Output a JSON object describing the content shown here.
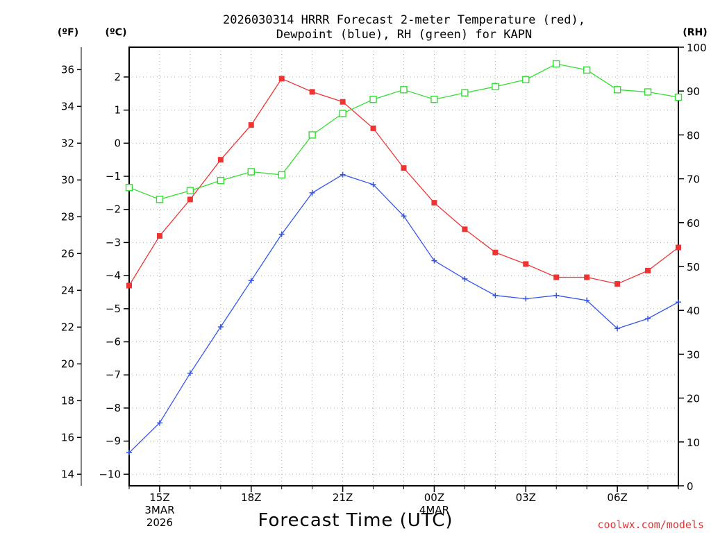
{
  "chart_data": {
    "type": "line",
    "title_line1": "2026030314 HRRR Forecast 2-meter Temperature (red),",
    "title_line2": "Dewpoint (blue), RH (green) for KAPN",
    "xlabel": "Forecast Time (UTC)",
    "credit": "coolwx.com/models",
    "units": {
      "fahrenheit": "(ºF)",
      "celsius": "(ºC)",
      "rh": "(RH)"
    },
    "x_hours": [
      14,
      15,
      16,
      17,
      18,
      19,
      20,
      21,
      22,
      23,
      24,
      25,
      26,
      27,
      28,
      29,
      30,
      31,
      32
    ],
    "x_range": [
      14,
      32
    ],
    "celsius_range": [
      -10.35,
      2.9
    ],
    "rh_range": [
      0,
      100
    ],
    "fahrenheit_ticks": [
      {
        "f": 14,
        "label": "14"
      },
      {
        "f": 16,
        "label": "16"
      },
      {
        "f": 18,
        "label": "18"
      },
      {
        "f": 20,
        "label": "20"
      },
      {
        "f": 22,
        "label": "22"
      },
      {
        "f": 24,
        "label": "24"
      },
      {
        "f": 26,
        "label": "26"
      },
      {
        "f": 28,
        "label": "28"
      },
      {
        "f": 30,
        "label": "30"
      },
      {
        "f": 32,
        "label": "32"
      },
      {
        "f": 34,
        "label": "34"
      },
      {
        "f": 36,
        "label": "36"
      }
    ],
    "celsius_ticks": [
      {
        "c": -10,
        "label": "−10"
      },
      {
        "c": -9,
        "label": "−9"
      },
      {
        "c": -8,
        "label": "−8"
      },
      {
        "c": -7,
        "label": "−7"
      },
      {
        "c": -6,
        "label": "−6"
      },
      {
        "c": -5,
        "label": "−5"
      },
      {
        "c": -4,
        "label": "−4"
      },
      {
        "c": -3,
        "label": "−3"
      },
      {
        "c": -2,
        "label": "−2"
      },
      {
        "c": -1,
        "label": "−1"
      },
      {
        "c": 0,
        "label": "0"
      },
      {
        "c": 1,
        "label": "1"
      },
      {
        "c": 2,
        "label": "2"
      }
    ],
    "rh_ticks": [
      {
        "rh": 0,
        "label": "0"
      },
      {
        "rh": 10,
        "label": "10"
      },
      {
        "rh": 20,
        "label": "20"
      },
      {
        "rh": 30,
        "label": "30"
      },
      {
        "rh": 40,
        "label": "40"
      },
      {
        "rh": 50,
        "label": "50"
      },
      {
        "rh": 60,
        "label": "60"
      },
      {
        "rh": 70,
        "label": "70"
      },
      {
        "rh": 80,
        "label": "80"
      },
      {
        "rh": 90,
        "label": "90"
      },
      {
        "rh": 100,
        "label": "100"
      }
    ],
    "x_ticks": [
      {
        "h": 15,
        "label": "15Z",
        "sub1": "3MAR",
        "sub2": "2026"
      },
      {
        "h": 18,
        "label": "18Z",
        "sub1": "",
        "sub2": ""
      },
      {
        "h": 21,
        "label": "21Z",
        "sub1": "",
        "sub2": ""
      },
      {
        "h": 24,
        "label": "00Z",
        "sub1": "4MAR",
        "sub2": ""
      },
      {
        "h": 27,
        "label": "03Z",
        "sub1": "",
        "sub2": ""
      },
      {
        "h": 30,
        "label": "06Z",
        "sub1": "",
        "sub2": ""
      }
    ],
    "series": [
      {
        "name": "Temperature",
        "axis": "celsius",
        "color": "#ee3333",
        "marker": "filled-square",
        "values": [
          -4.3,
          -2.8,
          -1.7,
          -0.5,
          0.55,
          1.95,
          1.55,
          1.25,
          0.45,
          -0.75,
          -1.8,
          -2.6,
          -3.3,
          -3.65,
          -4.05,
          -4.05,
          -4.25,
          -3.85,
          -3.15
        ]
      },
      {
        "name": "Dewpoint",
        "axis": "celsius",
        "color": "#3355ee",
        "marker": "plus",
        "values": [
          -9.35,
          -8.45,
          -6.95,
          -5.55,
          -4.15,
          -2.75,
          -1.5,
          -0.95,
          -1.25,
          -2.2,
          -3.55,
          -4.1,
          -4.6,
          -4.7,
          -4.6,
          -4.75,
          -5.6,
          -5.3,
          -4.8
        ]
      },
      {
        "name": "RH",
        "axis": "rh",
        "color": "#33dd33",
        "marker": "open-square",
        "values": [
          68,
          65.3,
          67.3,
          69.6,
          71.6,
          70.9,
          80,
          84.9,
          88.1,
          90.3,
          88.1,
          89.6,
          91,
          92.6,
          96.2,
          94.8,
          90.3,
          89.8,
          88.6
        ]
      }
    ]
  }
}
